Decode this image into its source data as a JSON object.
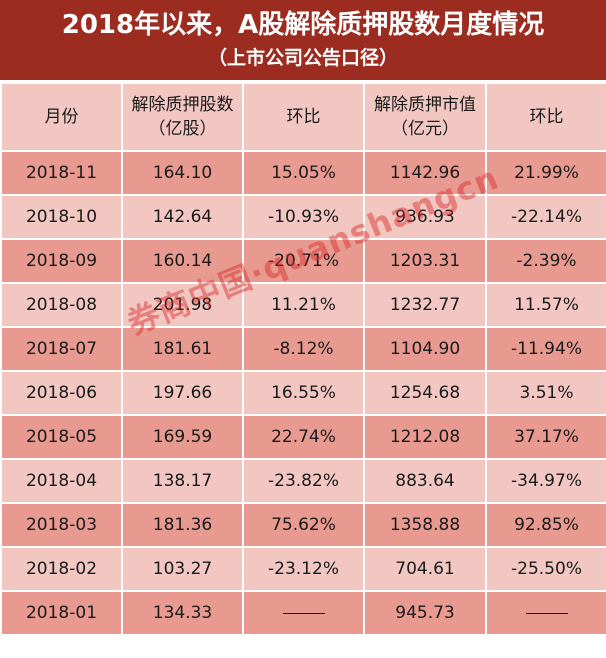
{
  "title": {
    "main": "2018年以来，A股解除质押股数月度情况",
    "sub": "（上市公司公告口径）"
  },
  "table": {
    "headers": [
      {
        "line1": "月份",
        "line2": ""
      },
      {
        "line1": "解除质押股数",
        "line2": "（亿股）"
      },
      {
        "line1": "环比",
        "line2": ""
      },
      {
        "line1": "解除质押市值",
        "line2": "（亿元）"
      },
      {
        "line1": "环比",
        "line2": ""
      }
    ],
    "rows": [
      {
        "month": "2018-11",
        "shares": "164.10",
        "shares_mom": "15.05%",
        "value": "1142.96",
        "value_mom": "21.99%"
      },
      {
        "month": "2018-10",
        "shares": "142.64",
        "shares_mom": "-10.93%",
        "value": "936.93",
        "value_mom": "-22.14%"
      },
      {
        "month": "2018-09",
        "shares": "160.14",
        "shares_mom": "-20.71%",
        "value": "1203.31",
        "value_mom": "-2.39%"
      },
      {
        "month": "2018-08",
        "shares": "201.98",
        "shares_mom": "11.21%",
        "value": "1232.77",
        "value_mom": "11.57%"
      },
      {
        "month": "2018-07",
        "shares": "181.61",
        "shares_mom": "-8.12%",
        "value": "1104.90",
        "value_mom": "-11.94%"
      },
      {
        "month": "2018-06",
        "shares": "197.66",
        "shares_mom": "16.55%",
        "value": "1254.68",
        "value_mom": "3.51%"
      },
      {
        "month": "2018-05",
        "shares": "169.59",
        "shares_mom": "22.74%",
        "value": "1212.08",
        "value_mom": "37.17%"
      },
      {
        "month": "2018-04",
        "shares": "138.17",
        "shares_mom": "-23.82%",
        "value": "883.64",
        "value_mom": "-34.97%"
      },
      {
        "month": "2018-03",
        "shares": "181.36",
        "shares_mom": "75.62%",
        "value": "1358.88",
        "value_mom": "92.85%"
      },
      {
        "month": "2018-02",
        "shares": "103.27",
        "shares_mom": "-23.12%",
        "value": "704.61",
        "value_mom": "-25.50%"
      },
      {
        "month": "2018-01",
        "shares": "134.33",
        "shares_mom": "——",
        "value": "945.73",
        "value_mom": "——"
      }
    ]
  },
  "watermark": "券商中国·quanshangcn",
  "colors": {
    "title_bg": "#9c2b20",
    "row_dark": "#e89a90",
    "row_light": "#f2c7c2",
    "header_bg": "#f2c7c2"
  }
}
